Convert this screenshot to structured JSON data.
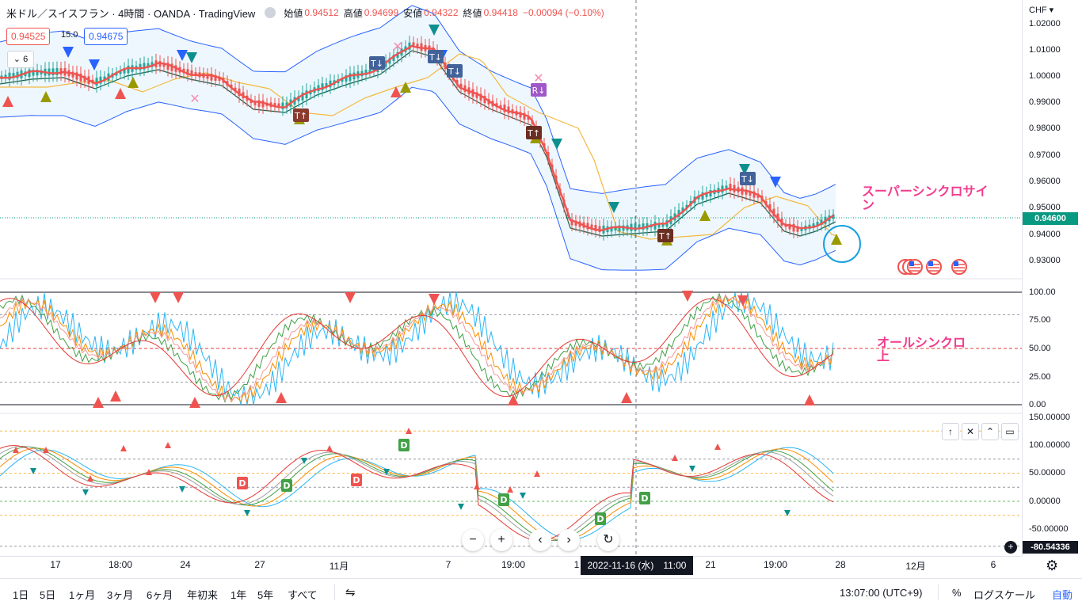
{
  "legend": {
    "symbol": "米ドル／スイスフラン · 4時間 · OANDA · TradingView",
    "open_label": "始値",
    "open": "0.94512",
    "high_label": "高値",
    "high": "0.94699",
    "low_label": "安値",
    "low": "0.94322",
    "close_label": "終値",
    "close": "0.94418",
    "change": "−0.00094 (−0.10%)"
  },
  "sell_price": "0.94525",
  "spread": "15.0",
  "buy_price": "0.94675",
  "indicators_count": "6",
  "currency": "CHF",
  "price_ticks": [
    "1.02000",
    "1.01000",
    "1.00000",
    "0.99000",
    "0.98000",
    "0.97000",
    "0.96000",
    "0.95000",
    "0.94000",
    "0.93000"
  ],
  "last_price": "0.94600",
  "osc1_ticks": [
    "100.00",
    "75.00",
    "50.00",
    "25.00",
    "0.00"
  ],
  "osc2_ticks": [
    "150.00000",
    "100.00000",
    "50.00000",
    "0.00000",
    "-50.00000"
  ],
  "crosshair_value": "-80.54336",
  "time_labels": [
    "17",
    "18:00",
    "24",
    "27",
    "11月",
    "7",
    "19:00",
    "1",
    "21",
    "19:00",
    "28",
    "12月",
    "6"
  ],
  "crosshair_time": "2022-11-16 (水)　11:00",
  "annotations": {
    "super_sync": "スーパーシンクロサイン",
    "all_sync": "オールシンクロ上"
  },
  "range_buttons": [
    "1日",
    "5日",
    "1ヶ月",
    "3ヶ月",
    "6ヶ月",
    "年初来",
    "1年",
    "5年",
    "すべて"
  ],
  "clock": "13:07:00 (UTC+9)",
  "percent": "%",
  "log_scale": "ログスケール",
  "auto": "自動",
  "colors": {
    "bull": "#26a69a",
    "bear": "#ef5350",
    "band": "#2962ff",
    "accent": "#2962ff",
    "annot": "#f23c8e"
  },
  "icons": [
    "eye-icon",
    "chevron-down-icon",
    "zoom-out-icon",
    "zoom-in-icon",
    "scroll-left-icon",
    "scroll-right-icon",
    "reset-icon",
    "compare-icon",
    "settings-icon",
    "arrow-up-icon",
    "close-icon",
    "collapse-icon",
    "maximize-icon",
    "plus-circle-icon",
    "us-flag-icon"
  ]
}
